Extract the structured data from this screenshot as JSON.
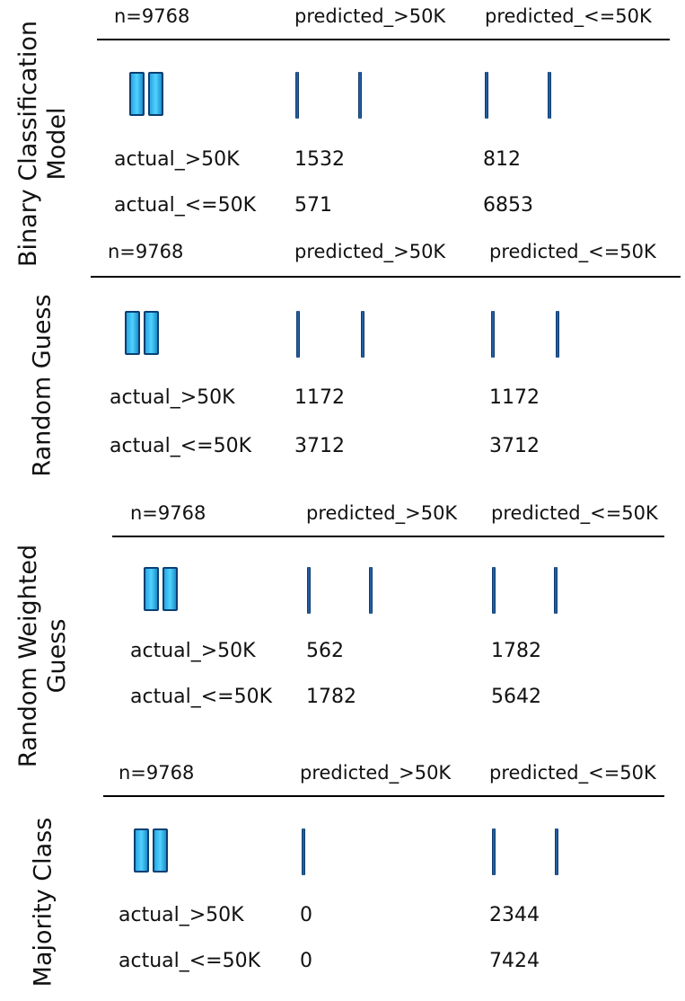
{
  "shared": {
    "n_label": "n=9768",
    "col_pred_pos": "predicted_>50K",
    "col_pred_neg": "predicted_<=50K",
    "row_actual_pos": "actual_>50K",
    "row_actual_neg": "actual_<=50K"
  },
  "panels": [
    {
      "title_line1": "Binary Classification",
      "title_line2": "Model",
      "tp": "1532",
      "fn": "812",
      "fp": "571",
      "tn": "6853"
    },
    {
      "title_line1": "Random Guess",
      "title_line2": "",
      "tp": "1172",
      "fn": "1172",
      "fp": "3712",
      "tn": "3712"
    },
    {
      "title_line1": "Random Weighted",
      "title_line2": "Guess",
      "tp": "562",
      "fn": "1782",
      "fp": "1782",
      "tn": "5642"
    },
    {
      "title_line1": "Majority Class",
      "title_line2": "",
      "tp": "0",
      "fn": "2344",
      "fp": "0",
      "tn": "7424"
    }
  ],
  "colors": {
    "pair_bar_fill": "#35c4f5",
    "tick_fill": "#1a4f8f",
    "rule": "#000000"
  }
}
